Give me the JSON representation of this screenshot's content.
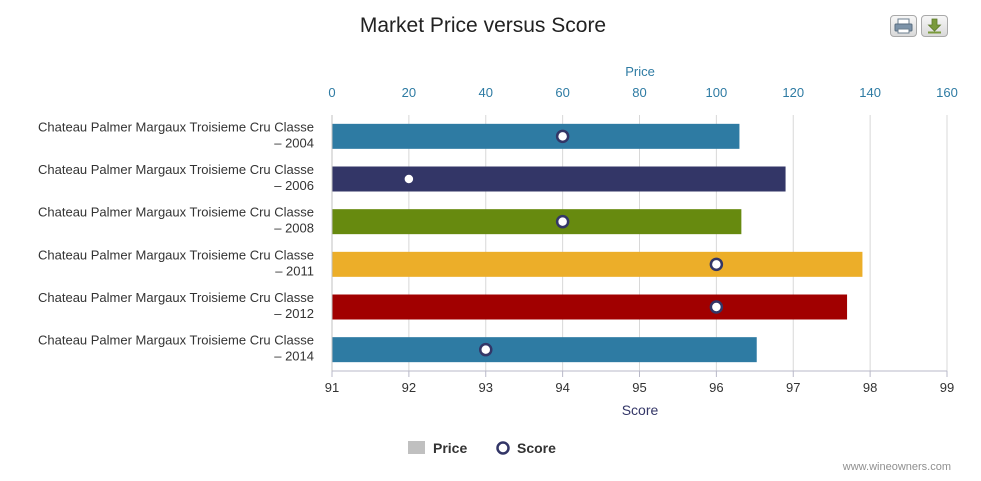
{
  "chart_data": {
    "type": "bar",
    "title": "Market Price versus Score",
    "categories": [
      [
        "Chateau Palmer Margaux Troisieme Cru Classe",
        "– 2004"
      ],
      [
        "Chateau Palmer Margaux Troisieme Cru Classe",
        "– 2006"
      ],
      [
        "Chateau Palmer Margaux Troisieme Cru Classe",
        "– 2008"
      ],
      [
        "Chateau Palmer Margaux Troisieme Cru Classe",
        "– 2011"
      ],
      [
        "Chateau Palmer Margaux Troisieme Cru Classe",
        "– 2012"
      ],
      [
        "Chateau Palmer Margaux Troisieme Cru Classe",
        "– 2014"
      ]
    ],
    "series": [
      {
        "name": "Price",
        "type": "bar",
        "axis": "top",
        "values": [
          106,
          118,
          106.5,
          138,
          134,
          110.5
        ],
        "colors": [
          "#2e7ba3",
          "#333667",
          "#678a0f",
          "#ecae29",
          "#a10000",
          "#2e7ba3"
        ]
      },
      {
        "name": "Score",
        "type": "scatter",
        "axis": "bottom",
        "values": [
          94,
          92,
          94,
          96,
          96,
          93
        ]
      }
    ],
    "price_axis": {
      "label": "Price",
      "range": [
        0,
        160
      ],
      "ticks": [
        "0",
        "20",
        "40",
        "60",
        "80",
        "100",
        "120",
        "140",
        "160"
      ]
    },
    "score_axis": {
      "label": "Score",
      "range": [
        91,
        99
      ],
      "ticks": [
        "91",
        "92",
        "93",
        "94",
        "95",
        "96",
        "97",
        "98",
        "99"
      ]
    },
    "legend": {
      "placement": "bottom",
      "items": [
        "Price",
        "Score"
      ]
    },
    "colors": {
      "price_axis": "#2e7ba3",
      "score_axis": "#333667",
      "legend_price": "#c0c0c0",
      "score_marker_stroke": "#333667",
      "gridline": "#d8d8d8"
    },
    "grid": true
  },
  "toolbar": {
    "print_icon": "printer-icon",
    "export_icon": "download-icon"
  },
  "credit": "www.wineowners.com"
}
